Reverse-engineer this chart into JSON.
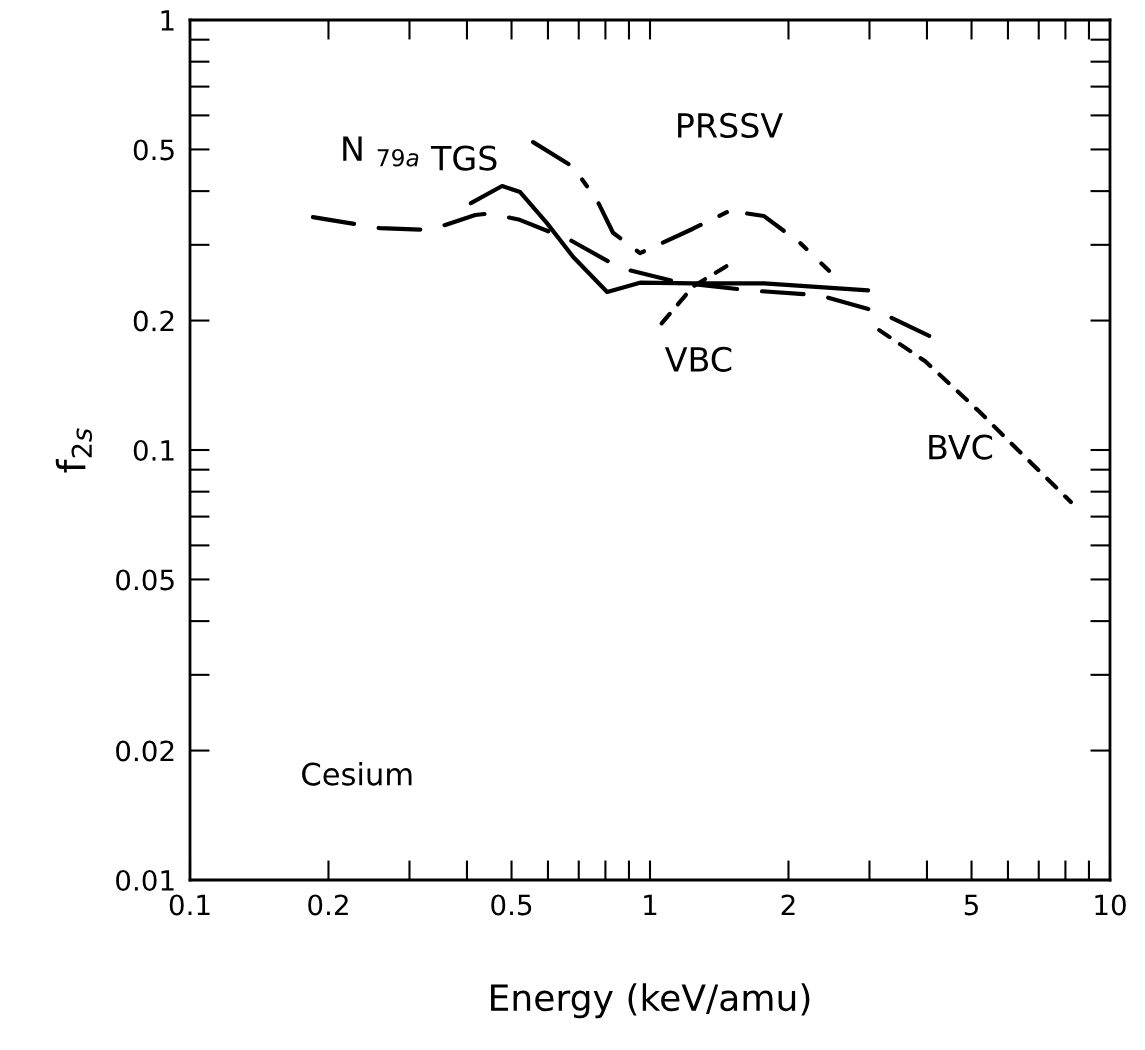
{
  "chart_data": {
    "type": "line",
    "xlabel": "Energy (keV/amu)",
    "ylabel": "f$_{2s}$",
    "log": "xy",
    "grid": false,
    "legend": false,
    "xlim": [
      0.1,
      10
    ],
    "ylim": [
      0.01,
      1
    ],
    "xticks": [
      0.1,
      0.2,
      0.5,
      1,
      2,
      5,
      10
    ],
    "yticks": [
      0.01,
      0.02,
      0.05,
      0.1,
      0.2,
      0.5,
      1
    ],
    "series": [
      {
        "name": "N $_{79a}$",
        "color": "#000000",
        "line_style": "dashed",
        "x": [
          0.185,
          0.259,
          0.333,
          0.417,
          0.449,
          0.521,
          0.67,
          0.861,
          1.16,
          1.65,
          2.34,
          3.16,
          4.06
        ],
        "values": [
          0.348,
          0.328,
          0.325,
          0.352,
          0.355,
          0.343,
          0.308,
          0.265,
          0.245,
          0.235,
          0.229,
          0.209,
          0.184
        ]
      },
      {
        "name": "TGS",
        "color": "#000000",
        "line_style": "solid",
        "x": [
          0.408,
          0.477,
          0.522,
          0.597,
          0.681,
          0.807,
          0.951,
          1.24,
          1.77,
          2.98
        ],
        "values": [
          0.375,
          0.411,
          0.398,
          0.337,
          0.281,
          0.233,
          0.245,
          0.244,
          0.244,
          0.235
        ]
      },
      {
        "name": "PRSSV",
        "color": "#000000",
        "line_style": "dashdot",
        "x": [
          0.557,
          0.681,
          0.767,
          0.831,
          0.951,
          1.24,
          1.49,
          1.77,
          2.12,
          2.45
        ],
        "values": [
          0.52,
          0.455,
          0.381,
          0.32,
          0.287,
          0.327,
          0.36,
          0.35,
          0.303,
          0.261
        ]
      },
      {
        "name": "VBC",
        "color": "#000000",
        "line_style": "dotted",
        "x": [
          1.06,
          1.24,
          1.47
        ],
        "values": [
          0.197,
          0.24,
          0.268
        ]
      },
      {
        "name": "BVC",
        "color": "#000000",
        "line_style": "dotted",
        "x": [
          3.15,
          3.96,
          5.19,
          6.53,
          8.22
        ],
        "values": [
          0.19,
          0.161,
          0.123,
          0.0964,
          0.0757
        ]
      }
    ],
    "annotations": [
      "Cesium"
    ]
  }
}
